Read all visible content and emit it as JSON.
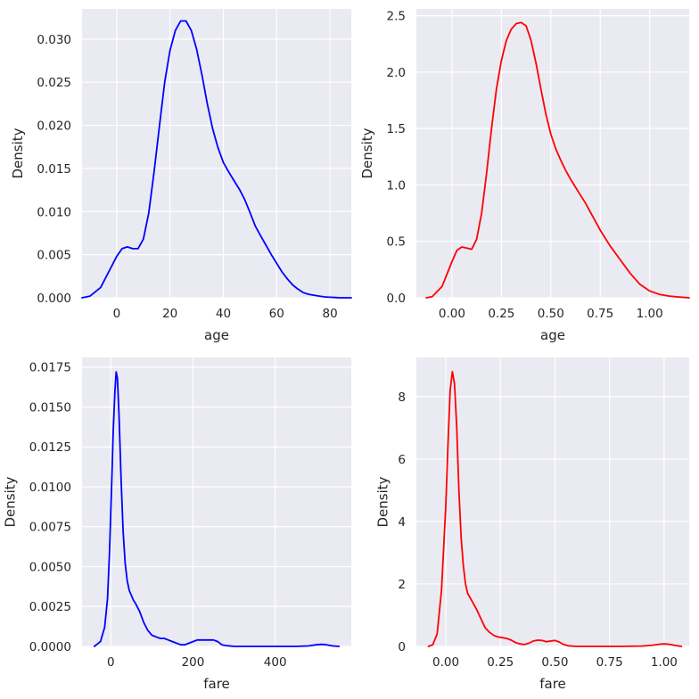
{
  "chart_data": [
    {
      "type": "line",
      "xlabel": "age",
      "ylabel": "Density",
      "color": "#0000ff",
      "grid": true,
      "background": "#eaeaf2",
      "xlim": [
        -13,
        88
      ],
      "ylim": [
        0,
        0.0335
      ],
      "xticks": [
        0,
        20,
        40,
        60,
        80
      ],
      "xtick_labels": [
        "0",
        "20",
        "40",
        "60",
        "80"
      ],
      "yticks": [
        0,
        0.005,
        0.01,
        0.015,
        0.02,
        0.025,
        0.03
      ],
      "ytick_labels": [
        "0.000",
        "0.005",
        "0.010",
        "0.015",
        "0.020",
        "0.025",
        "0.030"
      ],
      "series": [
        {
          "x": [
            -13,
            -10,
            -6,
            -3,
            0,
            2,
            4,
            6,
            8,
            10,
            12,
            14,
            16,
            18,
            20,
            22,
            24,
            26,
            28,
            30,
            32,
            34,
            36,
            38,
            40,
            42,
            44,
            46,
            48,
            50,
            52,
            54,
            56,
            58,
            60,
            62,
            64,
            66,
            68,
            70,
            72,
            74,
            76,
            78,
            80,
            82,
            84,
            86,
            88
          ],
          "y": [
            0,
            0.0002,
            0.0012,
            0.003,
            0.0048,
            0.0057,
            0.0059,
            0.0057,
            0.0057,
            0.0068,
            0.0098,
            0.0145,
            0.0198,
            0.025,
            0.0287,
            0.031,
            0.0321,
            0.0321,
            0.031,
            0.0288,
            0.0258,
            0.0225,
            0.0196,
            0.0174,
            0.0157,
            0.0146,
            0.0136,
            0.0126,
            0.0114,
            0.0099,
            0.0083,
            0.0072,
            0.0061,
            0.005,
            0.004,
            0.003,
            0.0022,
            0.0015,
            0.001,
            0.0006,
            0.0004,
            0.0003,
            0.0002,
            0.0001,
            6e-05,
            3e-05,
            0,
            0,
            0
          ]
        }
      ]
    },
    {
      "type": "line",
      "xlabel": "age",
      "ylabel": "Density",
      "color": "#ff0000",
      "grid": true,
      "background": "#eaeaf2",
      "xlim": [
        -0.18,
        1.2
      ],
      "ylim": [
        0,
        2.56
      ],
      "xticks": [
        0,
        0.25,
        0.5,
        0.75,
        1.0
      ],
      "xtick_labels": [
        "0.00",
        "0.25",
        "0.50",
        "0.75",
        "1.00"
      ],
      "yticks": [
        0,
        0.5,
        1.0,
        1.5,
        2.0,
        2.5
      ],
      "ytick_labels": [
        "0.0",
        "0.5",
        "1.0",
        "1.5",
        "2.0",
        "2.5"
      ],
      "series": [
        {
          "x": [
            -0.13,
            -0.1,
            -0.05,
            0,
            0.025,
            0.05,
            0.075,
            0.1,
            0.125,
            0.15,
            0.175,
            0.2,
            0.225,
            0.25,
            0.275,
            0.3,
            0.325,
            0.35,
            0.375,
            0.4,
            0.425,
            0.45,
            0.475,
            0.5,
            0.525,
            0.55,
            0.575,
            0.6,
            0.625,
            0.65,
            0.675,
            0.7,
            0.725,
            0.75,
            0.8,
            0.85,
            0.9,
            0.95,
            1.0,
            1.05,
            1.1,
            1.15,
            1.2
          ],
          "y": [
            0,
            0.01,
            0.1,
            0.32,
            0.42,
            0.45,
            0.44,
            0.43,
            0.52,
            0.75,
            1.1,
            1.5,
            1.85,
            2.1,
            2.28,
            2.38,
            2.43,
            2.44,
            2.41,
            2.28,
            2.08,
            1.85,
            1.63,
            1.45,
            1.32,
            1.22,
            1.13,
            1.05,
            0.98,
            0.91,
            0.84,
            0.76,
            0.68,
            0.6,
            0.46,
            0.34,
            0.22,
            0.12,
            0.06,
            0.03,
            0.015,
            0.006,
            0
          ]
        }
      ]
    },
    {
      "type": "line",
      "xlabel": "fare",
      "ylabel": "Density",
      "color": "#0000ff",
      "grid": true,
      "background": "#eaeaf2",
      "xlim": [
        -70,
        585
      ],
      "ylim": [
        0,
        0.0181
      ],
      "xticks": [
        0,
        200,
        400
      ],
      "xtick_labels": [
        "0",
        "200",
        "400"
      ],
      "yticks": [
        0,
        0.0025,
        0.005,
        0.0075,
        0.01,
        0.0125,
        0.015,
        0.0175
      ],
      "ytick_labels": [
        "0.0000",
        "0.0025",
        "0.0050",
        "0.0075",
        "0.0100",
        "0.0125",
        "0.0150",
        "0.0175"
      ],
      "series": [
        {
          "x": [
            -40,
            -25,
            -15,
            -8,
            -3,
            0,
            3,
            6,
            10,
            13,
            16,
            20,
            25,
            30,
            35,
            40,
            45,
            50,
            55,
            60,
            70,
            80,
            90,
            100,
            110,
            120,
            130,
            140,
            150,
            160,
            170,
            180,
            190,
            200,
            210,
            220,
            230,
            240,
            250,
            260,
            270,
            280,
            300,
            350,
            400,
            450,
            480,
            500,
            512,
            525,
            540,
            555
          ],
          "y": [
            0,
            0.0003,
            0.0012,
            0.003,
            0.006,
            0.0085,
            0.011,
            0.0135,
            0.016,
            0.0172,
            0.0168,
            0.0145,
            0.0105,
            0.0072,
            0.0052,
            0.0041,
            0.0035,
            0.0032,
            0.0029,
            0.0027,
            0.0022,
            0.0015,
            0.001,
            0.0007,
            0.0006,
            0.0005,
            0.0005,
            0.0004,
            0.0003,
            0.0002,
            0.0001,
            0.0001,
            0.0002,
            0.0003,
            0.0004,
            0.0004,
            0.0004,
            0.0004,
            0.0004,
            0.0003,
            0.0001,
            5e-05,
            0,
            0,
            0,
            0,
            3e-05,
            0.0001,
            0.00013,
            0.0001,
            3e-05,
            0
          ]
        }
      ]
    },
    {
      "type": "line",
      "xlabel": "fare",
      "ylabel": "Density",
      "color": "#ff0000",
      "grid": true,
      "background": "#eaeaf2",
      "xlim": [
        -0.135,
        1.115
      ],
      "ylim": [
        0,
        9.25
      ],
      "xticks": [
        0,
        0.25,
        0.5,
        0.75,
        1.0
      ],
      "xtick_labels": [
        "0.00",
        "0.25",
        "0.50",
        "0.75",
        "1.00"
      ],
      "yticks": [
        0,
        2,
        4,
        6,
        8
      ],
      "ytick_labels": [
        "0",
        "2",
        "4",
        "6",
        "8"
      ],
      "series": [
        {
          "x": [
            -0.08,
            -0.06,
            -0.04,
            -0.02,
            0,
            0.01,
            0.02,
            0.03,
            0.04,
            0.05,
            0.06,
            0.07,
            0.08,
            0.09,
            0.1,
            0.12,
            0.14,
            0.16,
            0.18,
            0.2,
            0.22,
            0.24,
            0.26,
            0.28,
            0.3,
            0.32,
            0.34,
            0.36,
            0.38,
            0.4,
            0.42,
            0.44,
            0.46,
            0.48,
            0.5,
            0.52,
            0.54,
            0.56,
            0.6,
            0.7,
            0.8,
            0.9,
            0.95,
            0.98,
            1.0,
            1.02,
            1.05,
            1.08
          ],
          "y": [
            0,
            0.05,
            0.4,
            1.8,
            4.5,
            6.5,
            8.2,
            8.8,
            8.4,
            7.0,
            5.0,
            3.5,
            2.6,
            2.0,
            1.7,
            1.45,
            1.2,
            0.9,
            0.6,
            0.45,
            0.35,
            0.3,
            0.28,
            0.25,
            0.2,
            0.12,
            0.08,
            0.06,
            0.1,
            0.17,
            0.2,
            0.19,
            0.15,
            0.17,
            0.19,
            0.14,
            0.06,
            0.02,
            0,
            0,
            0,
            0.01,
            0.04,
            0.07,
            0.08,
            0.07,
            0.03,
            0
          ]
        }
      ]
    }
  ]
}
